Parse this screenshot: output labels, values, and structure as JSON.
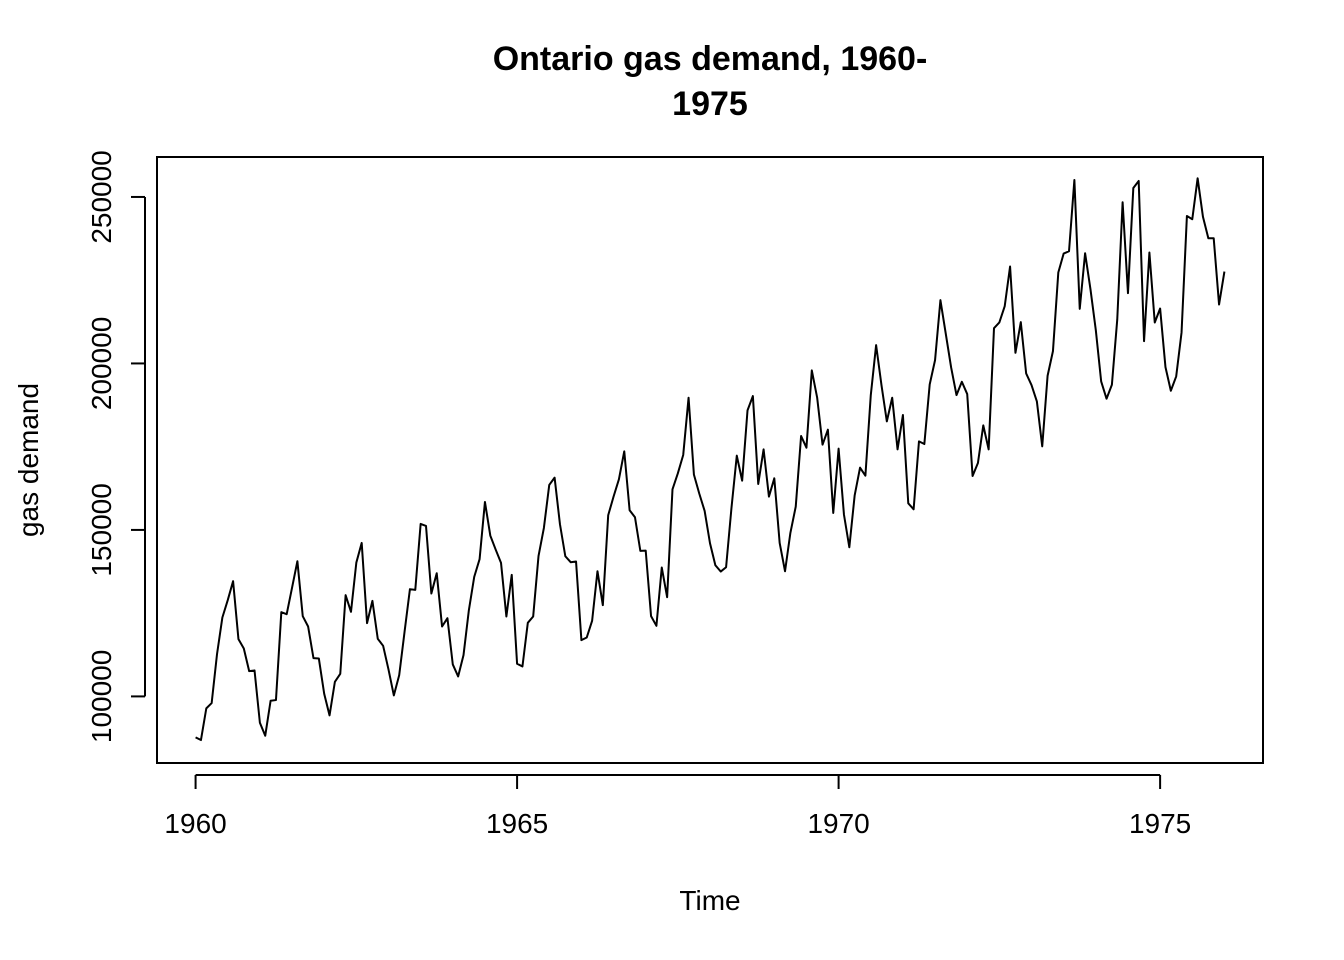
{
  "chart_data": {
    "type": "line",
    "title_lines": [
      "Ontario gas demand, 1960-",
      "1975"
    ],
    "xlabel": "Time",
    "ylabel": "gas demand",
    "xlim": [
      1959.4,
      1976.6
    ],
    "ylim": [
      80000,
      262000
    ],
    "x_ticks": [
      1960,
      1965,
      1970,
      1975
    ],
    "x_tick_labels": [
      "1960",
      "1965",
      "1970",
      "1975"
    ],
    "y_ticks": [
      100000,
      150000,
      200000,
      250000
    ],
    "y_tick_labels": [
      "100000",
      "150000",
      "200000",
      "250000"
    ],
    "grid": false,
    "legend": "none",
    "line_color": "#000000",
    "start": 1960,
    "frequency": 12,
    "series": [
      {
        "values": [
          87700,
          86900,
          96400,
          98000,
          112700,
          123700,
          128900,
          134600,
          117200,
          114400,
          107600,
          107800,
          92100,
          88200,
          98700,
          98900,
          125300,
          124700,
          132600,
          140600,
          124100,
          121000,
          111500,
          111400,
          100800,
          94300,
          104400,
          106800,
          130400,
          125400,
          140200,
          146100,
          122000,
          128700,
          117300,
          115200,
          108100,
          100300,
          106400,
          119400,
          132200,
          132000,
          151800,
          151200,
          130900,
          137000,
          121000,
          123500,
          109600,
          106000,
          112400,
          125900,
          135900,
          141200,
          158400,
          148300,
          144100,
          140100,
          124000,
          136500,
          109800,
          109000,
          122100,
          124000,
          142200,
          150600,
          163500,
          165700,
          151700,
          142100,
          140300,
          140500,
          116900,
          117700,
          122700,
          137600,
          127400,
          154400,
          160000,
          165200,
          173600,
          155900,
          153800,
          143700,
          143800,
          124100,
          121200,
          138700,
          129800,
          162200,
          167000,
          172500,
          189700,
          166600,
          160900,
          155700,
          146000,
          139400,
          137500,
          138800,
          156500,
          172300,
          164800,
          185900,
          190200,
          163800,
          174200,
          160000,
          165500,
          146100,
          137600,
          149100,
          157000,
          178200,
          174700,
          197900,
          189700,
          175600,
          180100,
          155100,
          174400,
          154600,
          144800,
          160400,
          168700,
          166300,
          190400,
          205500,
          193500,
          182600,
          189700,
          174200,
          184500,
          158000,
          156200,
          176600,
          175800,
          193700,
          201000,
          219000,
          208900,
          198800,
          190500,
          194500,
          190800,
          166200,
          170100,
          181400,
          174200,
          210600,
          212300,
          217200,
          229100,
          203200,
          212400,
          197000,
          193500,
          188600,
          175100,
          196300,
          203700,
          227300,
          233000,
          233700,
          255100,
          216400,
          233100,
          222300,
          210000,
          194600,
          189400,
          193600,
          213200,
          248400,
          221100,
          252700,
          254800,
          206700,
          233300,
          212300,
          216500,
          198900,
          191800,
          196100,
          209300,
          244300,
          243300,
          255600,
          244000,
          237600,
          237600,
          217700,
          227600
        ]
      }
    ]
  }
}
